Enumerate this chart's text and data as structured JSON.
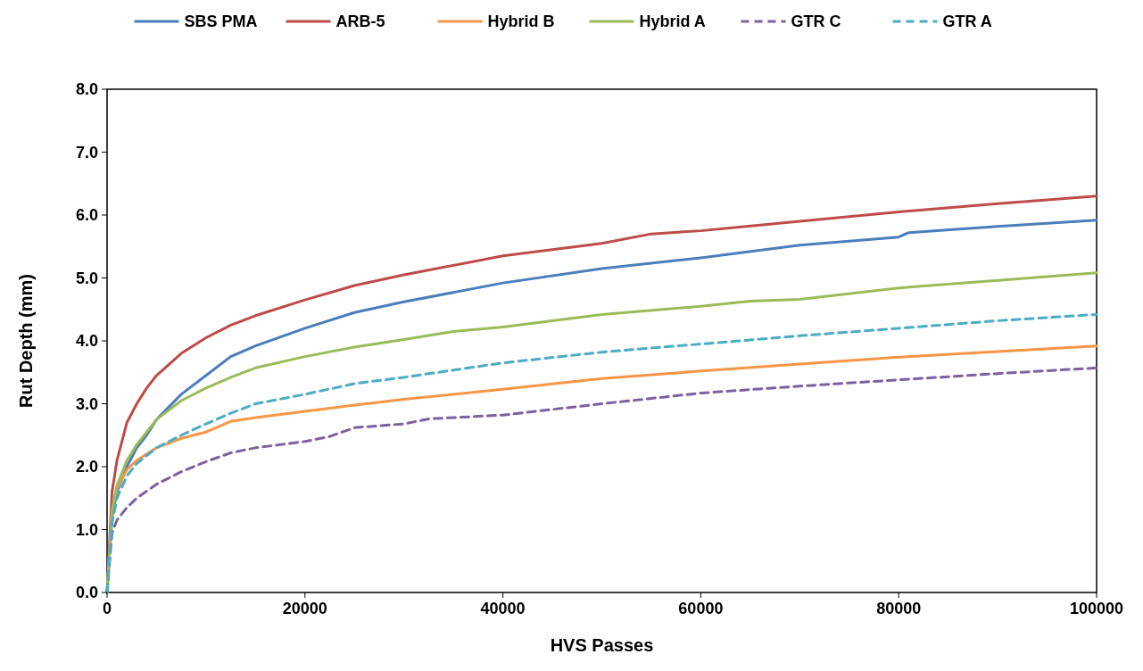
{
  "chart_data": {
    "type": "line",
    "xlabel": "HVS Passes",
    "ylabel": "Rut Depth (mm)",
    "legend": "top",
    "grid": false,
    "marker": "none",
    "xlim": [
      0,
      100000
    ],
    "xticks": [
      0,
      20000,
      40000,
      60000,
      80000,
      100000
    ],
    "ylim": [
      0,
      8
    ],
    "yticks": [
      {
        "value": 0,
        "label": "0.0"
      },
      {
        "value": 1,
        "label": "1.0"
      },
      {
        "value": 2,
        "label": "2.0"
      },
      {
        "value": 3,
        "label": "3.0"
      },
      {
        "value": 4,
        "label": "4.0"
      },
      {
        "value": 5,
        "label": "5.0"
      },
      {
        "value": 6,
        "label": "6.0"
      },
      {
        "value": 7,
        "label": "7.0"
      },
      {
        "value": 8,
        "label": "8.0"
      }
    ],
    "series": [
      {
        "name": "SBS PMA",
        "color": "#4a7ebb",
        "line_style": "solid",
        "x": [
          0,
          500,
          1000,
          2000,
          3000,
          4000,
          5000,
          7500,
          10000,
          12500,
          15000,
          20000,
          25000,
          30000,
          40000,
          50000,
          60000,
          70000,
          80000,
          81000,
          90000,
          100000
        ],
        "values": [
          0,
          1.2,
          1.6,
          2.0,
          2.3,
          2.5,
          2.75,
          3.15,
          3.45,
          3.75,
          3.92,
          4.2,
          4.45,
          4.62,
          4.92,
          5.15,
          5.32,
          5.52,
          5.65,
          5.72,
          5.82,
          5.92
        ]
      },
      {
        "name": "ARB-5",
        "color": "#be4b48",
        "line_style": "solid",
        "x": [
          0,
          500,
          1000,
          2000,
          3000,
          4000,
          5000,
          7500,
          10000,
          12500,
          15000,
          20000,
          25000,
          30000,
          40000,
          50000,
          55000,
          60000,
          70000,
          80000,
          90000,
          100000
        ],
        "values": [
          0,
          1.6,
          2.1,
          2.7,
          3.0,
          3.25,
          3.45,
          3.8,
          4.05,
          4.25,
          4.4,
          4.65,
          4.88,
          5.05,
          5.35,
          5.55,
          5.7,
          5.75,
          5.9,
          6.05,
          6.18,
          6.3
        ]
      },
      {
        "name": "Hybrid B",
        "color": "#f79646",
        "line_style": "solid",
        "x": [
          0,
          500,
          1000,
          2000,
          3000,
          5000,
          7500,
          10000,
          12500,
          15000,
          20000,
          25000,
          30000,
          40000,
          50000,
          60000,
          70000,
          80000,
          90000,
          100000
        ],
        "values": [
          0,
          1.3,
          1.65,
          1.95,
          2.1,
          2.3,
          2.45,
          2.55,
          2.72,
          2.78,
          2.88,
          2.98,
          3.07,
          3.23,
          3.4,
          3.52,
          3.63,
          3.74,
          3.83,
          3.92
        ]
      },
      {
        "name": "Hybrid A",
        "color": "#9bbb59",
        "line_style": "solid",
        "x": [
          0,
          500,
          1000,
          2000,
          3000,
          4000,
          5000,
          7500,
          10000,
          12500,
          15000,
          20000,
          25000,
          30000,
          35000,
          40000,
          50000,
          60000,
          65000,
          70000,
          80000,
          90000,
          100000
        ],
        "values": [
          0,
          1.3,
          1.7,
          2.1,
          2.35,
          2.55,
          2.75,
          3.05,
          3.25,
          3.42,
          3.57,
          3.75,
          3.9,
          4.02,
          4.15,
          4.22,
          4.42,
          4.55,
          4.63,
          4.66,
          4.84,
          4.96,
          5.08
        ]
      },
      {
        "name": "GTR C",
        "color": "#7d60a0",
        "line_style": "dashed",
        "x": [
          0,
          500,
          1000,
          2000,
          3000,
          5000,
          7500,
          10000,
          12500,
          15000,
          20000,
          22500,
          25000,
          30000,
          32500,
          40000,
          50000,
          60000,
          70000,
          80000,
          90000,
          100000
        ],
        "values": [
          0,
          0.95,
          1.15,
          1.35,
          1.5,
          1.72,
          1.92,
          2.08,
          2.22,
          2.3,
          2.4,
          2.48,
          2.62,
          2.68,
          2.76,
          2.82,
          3.0,
          3.17,
          3.28,
          3.38,
          3.48,
          3.57
        ]
      },
      {
        "name": "GTR A",
        "color": "#4bacc6",
        "line_style": "dashed",
        "x": [
          0,
          500,
          1000,
          2000,
          3000,
          5000,
          7500,
          10000,
          12500,
          15000,
          20000,
          25000,
          30000,
          40000,
          50000,
          60000,
          70000,
          80000,
          90000,
          100000
        ],
        "values": [
          0,
          1.1,
          1.5,
          1.85,
          2.05,
          2.3,
          2.5,
          2.68,
          2.85,
          3.0,
          3.15,
          3.32,
          3.42,
          3.65,
          3.82,
          3.95,
          4.08,
          4.2,
          4.32,
          4.42
        ]
      }
    ]
  }
}
